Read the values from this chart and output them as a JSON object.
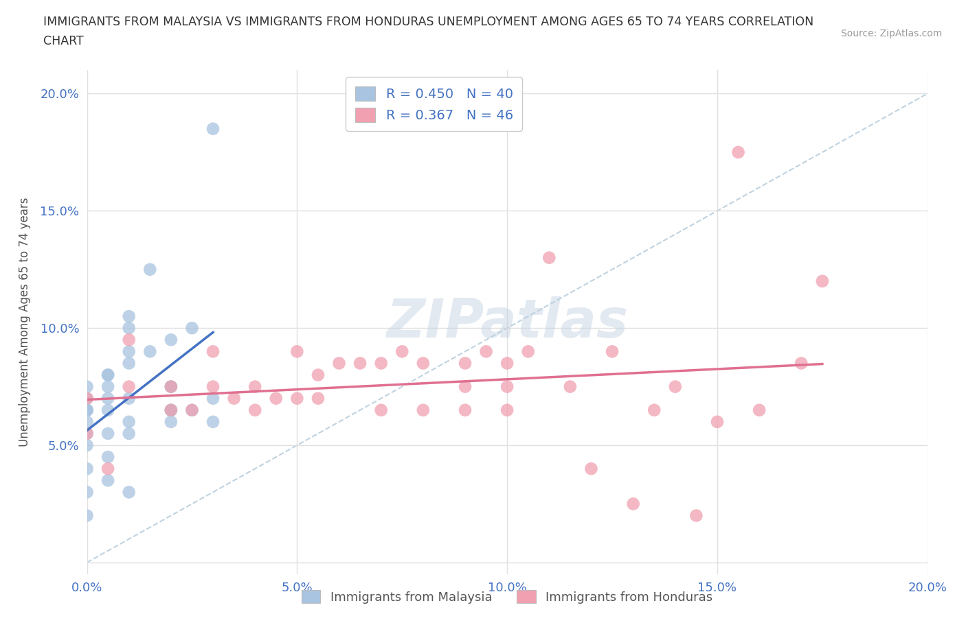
{
  "title": "IMMIGRANTS FROM MALAYSIA VS IMMIGRANTS FROM HONDURAS UNEMPLOYMENT AMONG AGES 65 TO 74 YEARS CORRELATION\nCHART",
  "source_text": "Source: ZipAtlas.com",
  "xlabel": "",
  "ylabel": "Unemployment Among Ages 65 to 74 years",
  "xlim": [
    0.0,
    0.2
  ],
  "ylim": [
    -0.005,
    0.21
  ],
  "xticks": [
    0.0,
    0.05,
    0.1,
    0.15,
    0.2
  ],
  "yticks": [
    0.0,
    0.05,
    0.1,
    0.15,
    0.2
  ],
  "xticklabels": [
    "0.0%",
    "5.0%",
    "10.0%",
    "15.0%",
    "20.0%"
  ],
  "yticklabels": [
    "",
    "5.0%",
    "10.0%",
    "15.0%",
    "20.0%"
  ],
  "malaysia_color": "#a8c4e0",
  "honduras_color": "#f0a0b0",
  "malaysia_line_color": "#4472c4",
  "honduras_line_color": "#e07090",
  "diagonal_color": "#b0c8d8",
  "R_malaysia": 0.45,
  "N_malaysia": 40,
  "R_honduras": 0.367,
  "N_honduras": 46,
  "legend_label_malaysia": "Immigrants from Malaysia",
  "legend_label_honduras": "Immigrants from Honduras",
  "malaysia_x": [
    0.0,
    0.0,
    0.0,
    0.0,
    0.0,
    0.0,
    0.0,
    0.0,
    0.0,
    0.005,
    0.005,
    0.005,
    0.005,
    0.005,
    0.005,
    0.01,
    0.01,
    0.01,
    0.01,
    0.01,
    0.01,
    0.01,
    0.015,
    0.015,
    0.02,
    0.02,
    0.02,
    0.02,
    0.02,
    0.025,
    0.025,
    0.03,
    0.03,
    0.0,
    0.0,
    0.005,
    0.01,
    0.005,
    0.02,
    0.03
  ],
  "malaysia_y": [
    0.065,
    0.07,
    0.075,
    0.065,
    0.06,
    0.055,
    0.05,
    0.04,
    0.03,
    0.075,
    0.07,
    0.065,
    0.055,
    0.045,
    0.08,
    0.105,
    0.1,
    0.09,
    0.085,
    0.07,
    0.06,
    0.055,
    0.125,
    0.09,
    0.095,
    0.075,
    0.065,
    0.06,
    0.075,
    0.1,
    0.065,
    0.07,
    0.06,
    0.02,
    0.065,
    0.035,
    0.03,
    0.08,
    0.065,
    0.185
  ],
  "honduras_x": [
    0.0,
    0.0,
    0.005,
    0.01,
    0.01,
    0.02,
    0.02,
    0.025,
    0.03,
    0.03,
    0.035,
    0.04,
    0.04,
    0.045,
    0.05,
    0.05,
    0.055,
    0.055,
    0.06,
    0.065,
    0.07,
    0.07,
    0.075,
    0.08,
    0.08,
    0.09,
    0.09,
    0.09,
    0.095,
    0.1,
    0.1,
    0.1,
    0.105,
    0.11,
    0.115,
    0.12,
    0.125,
    0.13,
    0.135,
    0.14,
    0.145,
    0.15,
    0.155,
    0.16,
    0.17,
    0.175
  ],
  "honduras_y": [
    0.07,
    0.055,
    0.04,
    0.095,
    0.075,
    0.075,
    0.065,
    0.065,
    0.09,
    0.075,
    0.07,
    0.075,
    0.065,
    0.07,
    0.09,
    0.07,
    0.08,
    0.07,
    0.085,
    0.085,
    0.085,
    0.065,
    0.09,
    0.085,
    0.065,
    0.085,
    0.075,
    0.065,
    0.09,
    0.075,
    0.085,
    0.065,
    0.09,
    0.13,
    0.075,
    0.04,
    0.09,
    0.025,
    0.065,
    0.075,
    0.02,
    0.06,
    0.175,
    0.065,
    0.085,
    0.12
  ],
  "watermark_text": "ZIPatlas",
  "background_color": "#ffffff",
  "grid_color": "#e0e0e0"
}
